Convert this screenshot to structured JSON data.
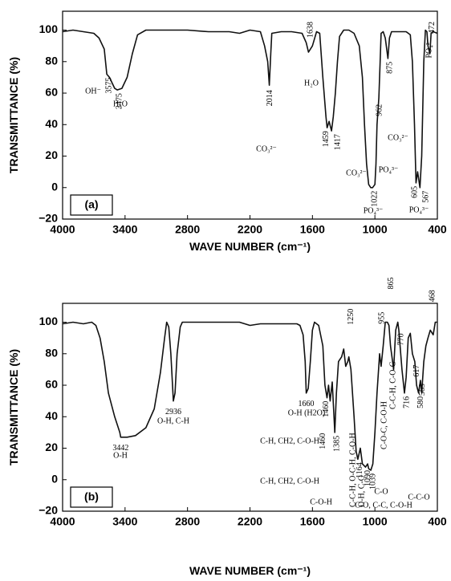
{
  "chart_data": [
    {
      "type": "line",
      "panel_label": "(a)",
      "xlabel": "WAVE NUMBER (cm⁻¹)",
      "ylabel": "TRANSMITTANCE (%)",
      "color": "#111111",
      "xlim": [
        4000,
        400
      ],
      "ylim": [
        -20,
        112
      ],
      "xticks": [
        4000,
        3400,
        2800,
        2200,
        1600,
        1000,
        400
      ],
      "yticks": [
        {
          "value": -20,
          "label": "−20"
        },
        0,
        20,
        40,
        60,
        80,
        100
      ],
      "x": [
        4000,
        3900,
        3800,
        3700,
        3650,
        3600,
        3575,
        3550,
        3500,
        3475,
        3430,
        3380,
        3330,
        3280,
        3200,
        3000,
        2800,
        2600,
        2400,
        2300,
        2200,
        2100,
        2060,
        2030,
        2014,
        2000,
        1990,
        1900,
        1800,
        1700,
        1660,
        1638,
        1600,
        1560,
        1530,
        1500,
        1470,
        1459,
        1440,
        1417,
        1400,
        1380,
        1360,
        1340,
        1300,
        1250,
        1200,
        1150,
        1120,
        1100,
        1080,
        1060,
        1040,
        1022,
        1000,
        990,
        980,
        962,
        950,
        940,
        920,
        900,
        875,
        860,
        840,
        800,
        700,
        660,
        640,
        620,
        605,
        590,
        567,
        550,
        530,
        515,
        500,
        490,
        472,
        460,
        440,
        400
      ],
      "values": [
        99,
        100,
        99,
        98,
        95,
        88,
        72,
        70,
        63,
        62,
        63,
        70,
        85,
        97,
        100,
        100,
        100,
        99,
        99,
        98,
        100,
        99,
        90,
        80,
        65,
        85,
        98,
        99,
        99,
        98,
        92,
        86,
        90,
        99,
        98,
        70,
        45,
        38,
        42,
        36,
        45,
        60,
        80,
        96,
        100,
        100,
        98,
        90,
        70,
        40,
        15,
        2,
        0,
        0,
        2,
        15,
        40,
        57,
        80,
        98,
        99,
        95,
        82,
        95,
        99,
        99,
        99,
        97,
        80,
        40,
        3,
        10,
        0,
        20,
        80,
        100,
        99,
        90,
        85,
        98,
        99,
        98
      ],
      "peak_labels": [
        3575,
        3475,
        2014,
        1638,
        1459,
        1417,
        1022,
        962,
        875,
        605,
        567,
        472
      ],
      "annotations": [
        "OH⁻",
        "H₂O",
        "CO₃²⁻",
        "H₂O",
        "CO₃²⁻",
        "PO₄³⁻",
        "PO₄³⁻",
        "CO₃²⁻",
        "PO₄³⁻",
        "PO₄³⁻"
      ]
    },
    {
      "type": "line",
      "panel_label": "(b)",
      "xlabel": "WAVE NUMBER (cm⁻¹)",
      "ylabel": "TRANSMITTANCE (%)",
      "color": "#111111",
      "xlim": [
        4000,
        400
      ],
      "ylim": [
        -20,
        112
      ],
      "xticks": [
        4000,
        3400,
        2800,
        2200,
        1600,
        1000,
        400
      ],
      "yticks": [
        {
          "value": -20,
          "label": "−20"
        },
        0,
        20,
        40,
        60,
        80,
        100
      ],
      "x": [
        4000,
        3900,
        3800,
        3720,
        3680,
        3640,
        3600,
        3560,
        3500,
        3450,
        3442,
        3380,
        3300,
        3200,
        3120,
        3060,
        3020,
        3000,
        2980,
        2960,
        2940,
        2936,
        2920,
        2900,
        2870,
        2850,
        2700,
        2500,
        2300,
        2200,
        2100,
        1900,
        1750,
        1720,
        1690,
        1670,
        1660,
        1640,
        1620,
        1600,
        1580,
        1540,
        1500,
        1480,
        1460,
        1445,
        1430,
        1410,
        1385,
        1370,
        1350,
        1320,
        1300,
        1280,
        1260,
        1250,
        1230,
        1200,
        1180,
        1164,
        1140,
        1120,
        1090,
        1070,
        1060,
        1039,
        1020,
        1000,
        980,
        960,
        955,
        940,
        920,
        900,
        880,
        865,
        850,
        820,
        800,
        780,
        770,
        740,
        716,
        700,
        680,
        660,
        640,
        617,
        600,
        580,
        563,
        550,
        530,
        510,
        490,
        468,
        440,
        420,
        400
      ],
      "values": [
        99,
        100,
        99,
        100,
        98,
        90,
        75,
        55,
        40,
        30,
        27,
        27,
        28,
        33,
        45,
        68,
        90,
        100,
        97,
        80,
        55,
        50,
        55,
        80,
        97,
        100,
        100,
        100,
        100,
        98,
        99,
        99,
        99,
        98,
        92,
        75,
        55,
        58,
        75,
        95,
        100,
        98,
        85,
        60,
        52,
        60,
        50,
        62,
        30,
        55,
        75,
        78,
        83,
        72,
        75,
        78,
        70,
        40,
        18,
        13,
        20,
        10,
        8,
        10,
        7,
        6,
        10,
        30,
        55,
        75,
        80,
        72,
        85,
        100,
        100,
        98,
        85,
        70,
        95,
        100,
        95,
        70,
        55,
        65,
        90,
        93,
        80,
        75,
        60,
        55,
        63,
        55,
        75,
        85,
        90,
        95,
        92,
        100,
        100
      ],
      "peak_labels": [
        3442,
        2936,
        1660,
        1460,
        1460,
        1385,
        1250,
        1164,
        1090,
        1039,
        955,
        865,
        770,
        716,
        617,
        580,
        563,
        468
      ],
      "annotations": [
        "O-H",
        "O-H, C-H",
        "O-H (H2O)",
        "C-H, CH2, C-O-H",
        "C-H, CH2, C-O-H",
        "C-O-H",
        "C-C-H, O-C-H, C-O-H",
        "O-H, C-O",
        "C-O",
        "C-O, C-C, C-O-H",
        "C-O-C, C-O-H",
        "C-C-H, C-O-C",
        "C-C-O"
      ]
    }
  ]
}
